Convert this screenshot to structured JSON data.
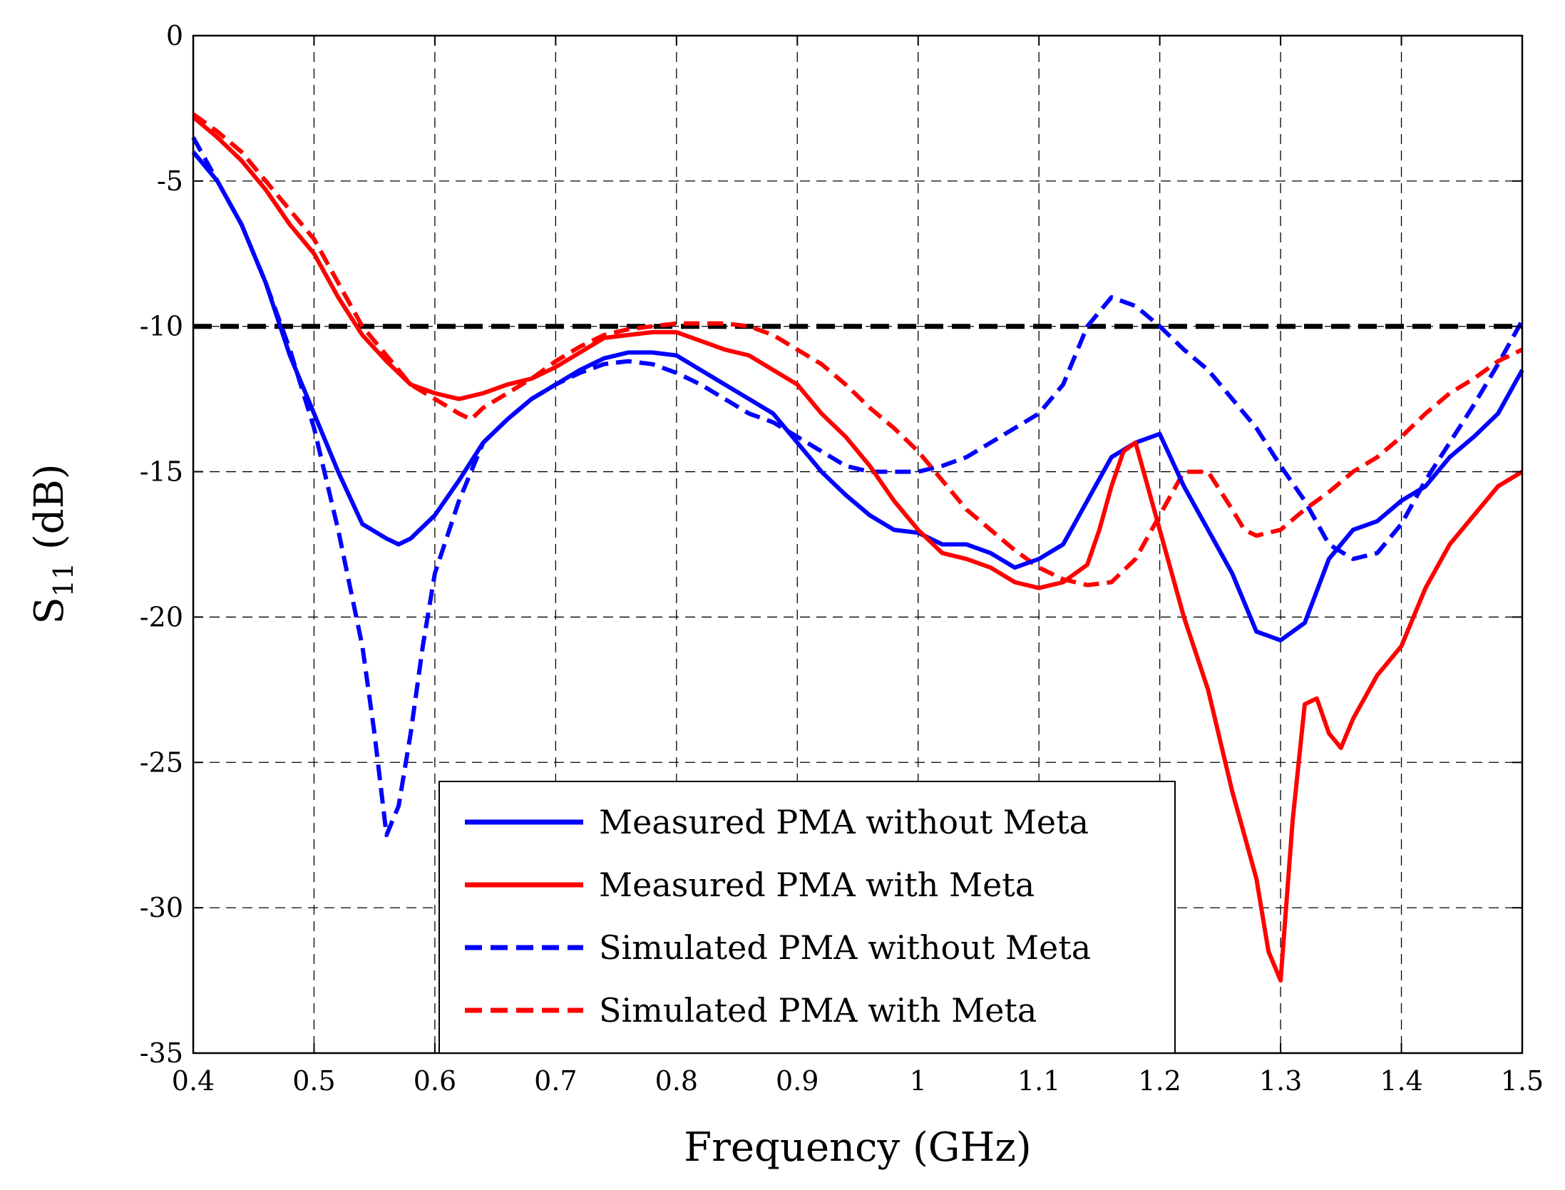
{
  "chart_data": {
    "type": "line",
    "title": "",
    "xlabel": "Frequency (GHz)",
    "ylabel": {
      "main": "S",
      "sub": "11",
      "unit": " (dB)"
    },
    "xlim": [
      0.4,
      1.5
    ],
    "ylim": [
      -35,
      0
    ],
    "xticks": [
      0.4,
      0.5,
      0.6,
      0.7,
      0.8,
      0.9,
      1.0,
      1.1,
      1.2,
      1.3,
      1.4,
      1.5
    ],
    "xtick_labels": [
      "0.4",
      "0.5",
      "0.6",
      "0.7",
      "0.8",
      "0.9",
      "1",
      "1.1",
      "1.2",
      "1.3",
      "1.4",
      "1.5"
    ],
    "yticks": [
      0,
      -5,
      -10,
      -15,
      -20,
      -25,
      -30,
      -35
    ],
    "ytick_labels": [
      "0",
      "-5",
      "-10",
      "-15",
      "-20",
      "-25",
      "-30",
      "-35"
    ],
    "grid": true,
    "legend_position": "bottom-center",
    "reference_line": {
      "y": -10,
      "color": "#000000",
      "style": "dashed"
    },
    "series": [
      {
        "name": "Measured PMA without Meta",
        "color": "#0000ff",
        "style": "solid",
        "x": [
          0.4,
          0.42,
          0.44,
          0.46,
          0.48,
          0.5,
          0.52,
          0.54,
          0.56,
          0.57,
          0.58,
          0.6,
          0.62,
          0.64,
          0.66,
          0.68,
          0.7,
          0.72,
          0.74,
          0.76,
          0.78,
          0.8,
          0.82,
          0.84,
          0.86,
          0.88,
          0.9,
          0.92,
          0.94,
          0.96,
          0.98,
          1.0,
          1.02,
          1.04,
          1.06,
          1.08,
          1.1,
          1.12,
          1.14,
          1.16,
          1.18,
          1.2,
          1.22,
          1.24,
          1.26,
          1.28,
          1.3,
          1.32,
          1.34,
          1.36,
          1.38,
          1.4,
          1.42,
          1.44,
          1.46,
          1.48,
          1.5
        ],
        "y": [
          -4.0,
          -5.0,
          -6.5,
          -8.5,
          -11.0,
          -13.0,
          -15.0,
          -16.8,
          -17.3,
          -17.5,
          -17.3,
          -16.5,
          -15.3,
          -14.0,
          -13.2,
          -12.5,
          -12.0,
          -11.5,
          -11.1,
          -10.9,
          -10.9,
          -11.0,
          -11.5,
          -12.0,
          -12.5,
          -13.0,
          -14.0,
          -15.0,
          -15.8,
          -16.5,
          -17.0,
          -17.1,
          -17.5,
          -17.5,
          -17.8,
          -18.3,
          -18.0,
          -17.5,
          -16.0,
          -14.5,
          -14.0,
          -13.7,
          -15.5,
          -17.0,
          -18.5,
          -20.5,
          -20.8,
          -20.2,
          -18.0,
          -17.0,
          -16.7,
          -16.0,
          -15.5,
          -14.5,
          -13.8,
          -13.0,
          -11.5
        ]
      },
      {
        "name": "Measured PMA with Meta",
        "color": "#ff0000",
        "style": "solid",
        "x": [
          0.4,
          0.42,
          0.44,
          0.46,
          0.48,
          0.5,
          0.52,
          0.54,
          0.56,
          0.58,
          0.6,
          0.62,
          0.64,
          0.66,
          0.68,
          0.7,
          0.72,
          0.74,
          0.76,
          0.78,
          0.8,
          0.82,
          0.84,
          0.86,
          0.88,
          0.9,
          0.92,
          0.94,
          0.96,
          0.98,
          1.0,
          1.02,
          1.04,
          1.06,
          1.08,
          1.1,
          1.12,
          1.14,
          1.15,
          1.16,
          1.17,
          1.18,
          1.2,
          1.22,
          1.24,
          1.26,
          1.27,
          1.28,
          1.29,
          1.3,
          1.31,
          1.32,
          1.33,
          1.34,
          1.35,
          1.36,
          1.38,
          1.4,
          1.42,
          1.44,
          1.46,
          1.48,
          1.5
        ],
        "y": [
          -2.8,
          -3.5,
          -4.3,
          -5.3,
          -6.5,
          -7.5,
          -9.0,
          -10.3,
          -11.2,
          -12.0,
          -12.3,
          -12.5,
          -12.3,
          -12.0,
          -11.8,
          -11.4,
          -10.9,
          -10.4,
          -10.3,
          -10.2,
          -10.2,
          -10.5,
          -10.8,
          -11.0,
          -11.5,
          -12.0,
          -13.0,
          -13.8,
          -14.8,
          -16.0,
          -17.0,
          -17.8,
          -18.0,
          -18.3,
          -18.8,
          -19.0,
          -18.8,
          -18.2,
          -17.0,
          -15.5,
          -14.3,
          -14.0,
          -17.0,
          -20.0,
          -22.5,
          -26.0,
          -27.5,
          -29.0,
          -31.5,
          -32.5,
          -27.0,
          -23.0,
          -22.8,
          -24.0,
          -24.5,
          -23.5,
          -22.0,
          -21.0,
          -19.0,
          -17.5,
          -16.5,
          -15.5,
          -15.0
        ]
      },
      {
        "name": "Simulated PMA without Meta",
        "color": "#0000ff",
        "style": "dashed",
        "x": [
          0.4,
          0.42,
          0.44,
          0.46,
          0.48,
          0.5,
          0.52,
          0.54,
          0.55,
          0.56,
          0.57,
          0.58,
          0.59,
          0.6,
          0.62,
          0.64,
          0.66,
          0.68,
          0.7,
          0.72,
          0.74,
          0.76,
          0.78,
          0.8,
          0.82,
          0.84,
          0.86,
          0.88,
          0.9,
          0.92,
          0.94,
          0.96,
          0.98,
          1.0,
          1.02,
          1.04,
          1.06,
          1.08,
          1.1,
          1.12,
          1.14,
          1.16,
          1.18,
          1.2,
          1.22,
          1.24,
          1.26,
          1.28,
          1.3,
          1.32,
          1.34,
          1.36,
          1.38,
          1.4,
          1.42,
          1.44,
          1.46,
          1.48,
          1.5
        ],
        "y": [
          -3.5,
          -5.0,
          -6.5,
          -8.5,
          -10.8,
          -13.5,
          -17.0,
          -21.0,
          -24.0,
          -27.5,
          -26.5,
          -24.0,
          -21.0,
          -18.5,
          -16.0,
          -14.0,
          -13.2,
          -12.5,
          -12.0,
          -11.6,
          -11.3,
          -11.2,
          -11.3,
          -11.6,
          -12.0,
          -12.5,
          -13.0,
          -13.3,
          -13.8,
          -14.3,
          -14.8,
          -15.0,
          -15.0,
          -15.0,
          -14.8,
          -14.5,
          -14.0,
          -13.5,
          -13.0,
          -12.0,
          -10.0,
          -9.0,
          -9.3,
          -10.0,
          -10.8,
          -11.5,
          -12.5,
          -13.5,
          -14.8,
          -16.0,
          -17.5,
          -18.0,
          -17.8,
          -16.8,
          -15.3,
          -14.0,
          -12.7,
          -11.3,
          -9.8
        ]
      },
      {
        "name": "Simulated PMA with Meta",
        "color": "#ff0000",
        "style": "dashed",
        "x": [
          0.4,
          0.42,
          0.44,
          0.46,
          0.48,
          0.5,
          0.52,
          0.54,
          0.56,
          0.58,
          0.6,
          0.62,
          0.63,
          0.64,
          0.66,
          0.68,
          0.7,
          0.72,
          0.74,
          0.76,
          0.78,
          0.8,
          0.82,
          0.84,
          0.86,
          0.88,
          0.9,
          0.92,
          0.94,
          0.96,
          0.98,
          1.0,
          1.02,
          1.04,
          1.06,
          1.08,
          1.1,
          1.12,
          1.14,
          1.16,
          1.18,
          1.2,
          1.22,
          1.24,
          1.26,
          1.27,
          1.28,
          1.3,
          1.32,
          1.34,
          1.36,
          1.38,
          1.4,
          1.42,
          1.44,
          1.46,
          1.48,
          1.5
        ],
        "y": [
          -2.7,
          -3.3,
          -4.0,
          -5.0,
          -6.0,
          -7.0,
          -8.5,
          -10.0,
          -11.0,
          -12.0,
          -12.5,
          -13.0,
          -13.2,
          -12.8,
          -12.3,
          -11.8,
          -11.2,
          -10.7,
          -10.3,
          -10.1,
          -10.0,
          -9.9,
          -9.9,
          -9.9,
          -10.0,
          -10.3,
          -10.8,
          -11.3,
          -12.0,
          -12.8,
          -13.5,
          -14.3,
          -15.3,
          -16.3,
          -17.0,
          -17.7,
          -18.3,
          -18.7,
          -18.9,
          -18.8,
          -18.0,
          -16.5,
          -15.0,
          -15.0,
          -16.3,
          -17.0,
          -17.2,
          -17.0,
          -16.3,
          -15.7,
          -15.0,
          -14.5,
          -13.8,
          -13.0,
          -12.3,
          -11.8,
          -11.2,
          -10.8
        ]
      }
    ]
  }
}
